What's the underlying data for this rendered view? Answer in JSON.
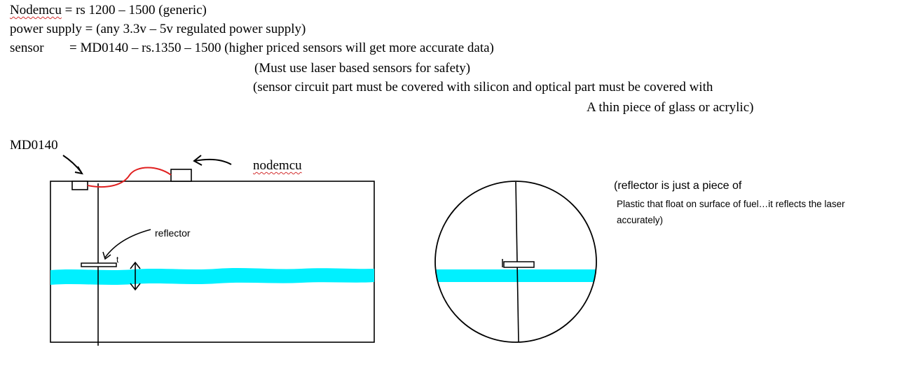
{
  "header": {
    "line1": {
      "term": "Nodemcu",
      "rest": " = rs 1200 – 1500 (generic)"
    },
    "line2": "power supply = (any 3.3v – 5v regulated power supply)",
    "line3_label": "sensor",
    "line3_value": "= MD0140 – rs.1350 – 1500 (higher priced sensors will get more accurate data)",
    "line4": "(Must use laser based sensors for safety)",
    "line5": "(sensor circuit part must be covered with silicon and optical part must be covered with",
    "line6": "A thin piece of glass or acrylic)"
  },
  "diagram": {
    "label_sensor": "MD0140",
    "label_nodemcu": "nodemcu",
    "label_reflector": "reflector",
    "label_t": "t",
    "fuel_color": "#00f0ff",
    "wire_color": "#e02020"
  },
  "note": {
    "line1": "(reflector is just a piece of",
    "line2": "Plastic that float on surface of fuel…it reflects the laser",
    "line3": "accurately)"
  }
}
